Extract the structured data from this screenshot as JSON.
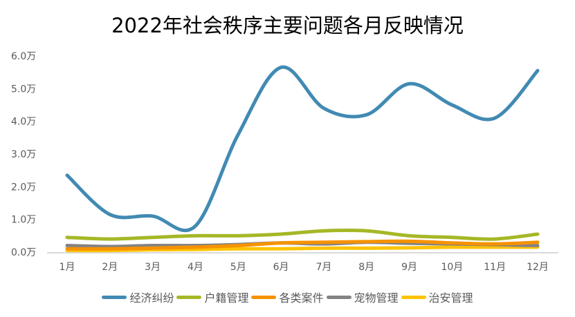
{
  "chart_data": {
    "type": "line",
    "title": "2022年社会秩序主要问题各月反映情况",
    "xlabel": "",
    "ylabel": "",
    "categories": [
      "1月",
      "2月",
      "3月",
      "4月",
      "5月",
      "6月",
      "7月",
      "8月",
      "9月",
      "10月",
      "11月",
      "12月"
    ],
    "yticks": [
      "0.0万",
      "1.0万",
      "2.0万",
      "3.0万",
      "4.0万",
      "5.0万",
      "6.0万"
    ],
    "ylim": [
      0,
      6
    ],
    "unit": "万",
    "grid": false,
    "legend_position": "bottom",
    "smooth": true,
    "series": [
      {
        "name": "经济纠纷",
        "color": "#418AB3",
        "values": [
          2.35,
          1.15,
          1.1,
          0.8,
          3.6,
          5.65,
          4.4,
          4.2,
          5.15,
          4.5,
          4.1,
          5.55
        ]
      },
      {
        "name": "户籍管理",
        "color": "#A6B727",
        "values": [
          0.45,
          0.4,
          0.45,
          0.5,
          0.5,
          0.55,
          0.65,
          0.65,
          0.5,
          0.45,
          0.4,
          0.55
        ]
      },
      {
        "name": "各类案件",
        "color": "#F69200",
        "values": [
          0.1,
          0.1,
          0.12,
          0.15,
          0.2,
          0.28,
          0.3,
          0.32,
          0.33,
          0.28,
          0.25,
          0.3
        ]
      },
      {
        "name": "宠物管理",
        "color": "#838383",
        "values": [
          0.2,
          0.17,
          0.2,
          0.2,
          0.23,
          0.28,
          0.25,
          0.3,
          0.27,
          0.25,
          0.23,
          0.2
        ]
      },
      {
        "name": "治安管理",
        "color": "#FEC306",
        "values": [
          0.05,
          0.05,
          0.07,
          0.08,
          0.1,
          0.1,
          0.12,
          0.12,
          0.13,
          0.15,
          0.15,
          0.15
        ]
      }
    ]
  },
  "colors": {
    "axis": "#D9D9D9",
    "tick_text": "#595959",
    "title": "#000000"
  }
}
